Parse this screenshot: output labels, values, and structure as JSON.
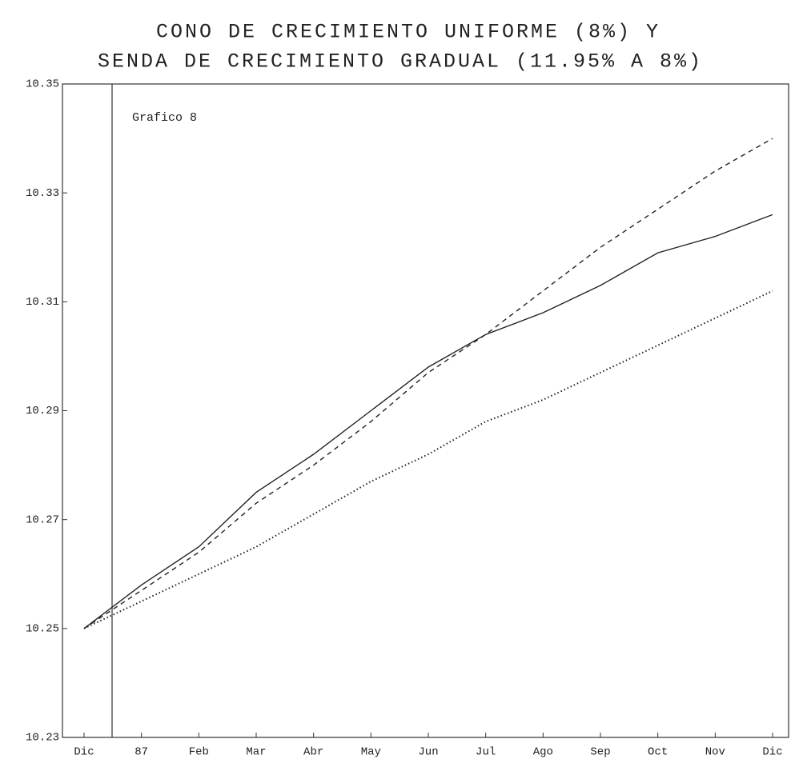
{
  "chart_data": {
    "type": "line",
    "title": "CONO DE CRECIMIENTO UNIFORME (8%) Y",
    "subtitle": "SENDA DE CRECIMIENTO GRADUAL (11.95% A 8%)",
    "annotation": "Grafico 8",
    "categories": [
      "Dic",
      "87",
      "Feb",
      "Mar",
      "Abr",
      "May",
      "Jun",
      "Jul",
      "Ago",
      "Sep",
      "Oct",
      "Nov",
      "Dic"
    ],
    "series": [
      {
        "color": "#222222",
        "style": "dashed",
        "values": [
          10.25,
          10.257,
          10.264,
          10.273,
          10.28,
          10.288,
          10.297,
          10.304,
          10.312,
          10.32,
          10.327,
          10.334,
          10.34
        ]
      },
      {
        "color": "#222222",
        "style": "solid",
        "values": [
          10.25,
          10.258,
          10.265,
          10.275,
          10.282,
          10.29,
          10.298,
          10.304,
          10.308,
          10.313,
          10.319,
          10.322,
          10.326
        ]
      },
      {
        "color": "#222222",
        "style": "dotted",
        "values": [
          10.25,
          10.255,
          10.26,
          10.265,
          10.271,
          10.277,
          10.282,
          10.288,
          10.292,
          10.297,
          10.302,
          10.307,
          10.312
        ]
      }
    ],
    "ylim": [
      10.23,
      10.35
    ],
    "yticks": [
      10.23,
      10.25,
      10.27,
      10.29,
      10.31,
      10.33,
      10.35
    ],
    "grid": false
  }
}
